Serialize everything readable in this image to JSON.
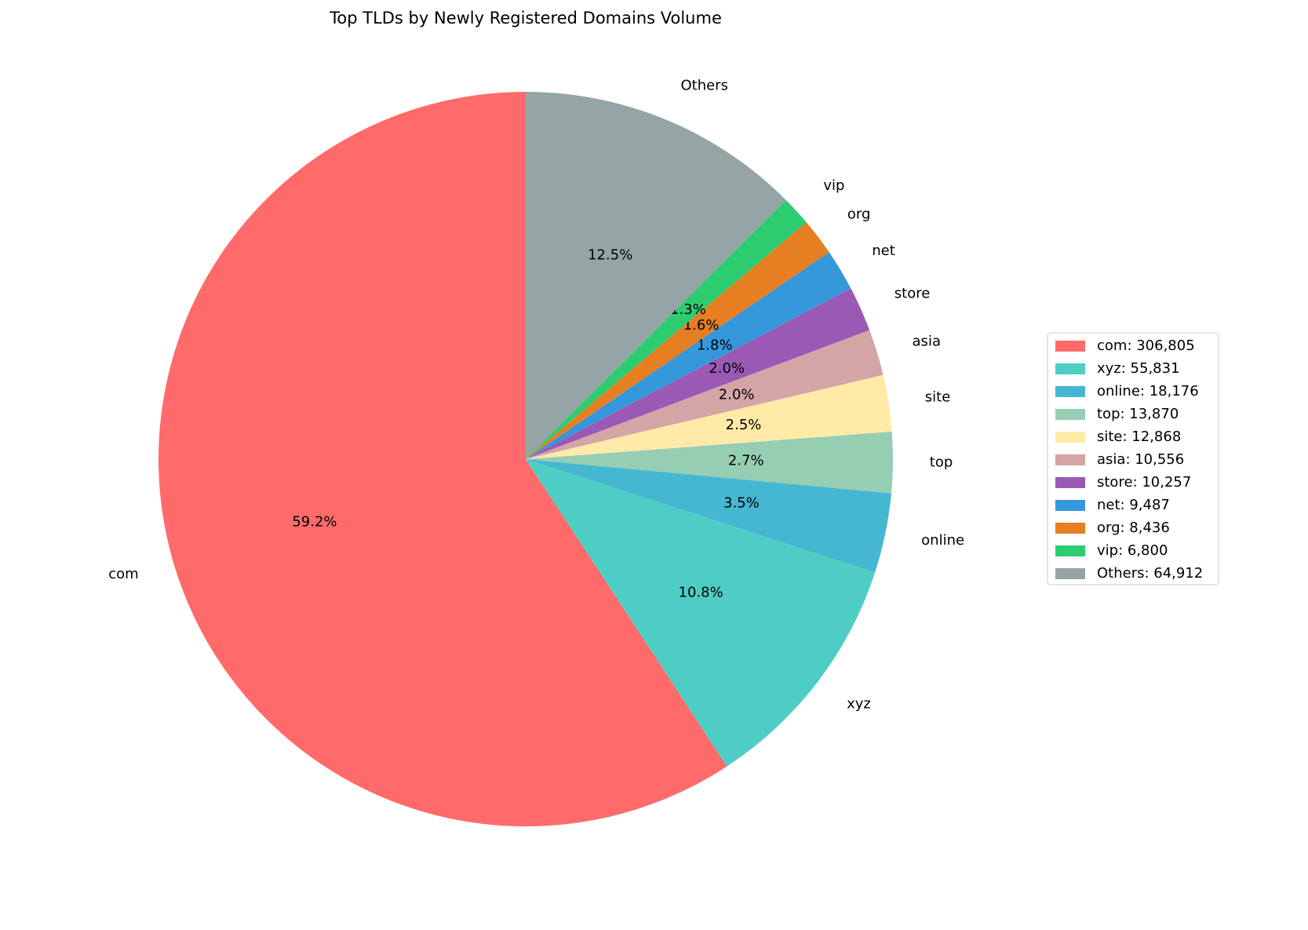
{
  "chart_data": {
    "type": "pie",
    "title": "Top TLDs by Newly Registered Domains Volume",
    "categories": [
      "com",
      "xyz",
      "online",
      "top",
      "site",
      "asia",
      "store",
      "net",
      "org",
      "vip",
      "Others"
    ],
    "values": [
      306805,
      55831,
      18176,
      13870,
      12868,
      10556,
      10257,
      9487,
      8436,
      6800,
      64912
    ],
    "colors": [
      "#ff6b6b",
      "#4ecdc4",
      "#45b7d1",
      "#96ceb4",
      "#ffeaa7",
      "#d4a5a5",
      "#9b59b6",
      "#3498db",
      "#e67e22",
      "#2ecc71",
      "#95a5a6"
    ],
    "percent_labels": [
      "59.2%",
      "10.8%",
      "3.5%",
      "2.7%",
      "2.5%",
      "2.0%",
      "2.0%",
      "1.8%",
      "1.6%",
      "1.3%",
      "12.5%"
    ],
    "legend_labels": [
      "com: 306,805",
      "xyz: 55,831",
      "online: 18,176",
      "top: 13,870",
      "site: 12,868",
      "asia: 10,556",
      "store: 10,257",
      "net: 9,487",
      "org: 8,436",
      "vip: 6,800",
      "Others: 64,912"
    ],
    "legend": "right"
  }
}
